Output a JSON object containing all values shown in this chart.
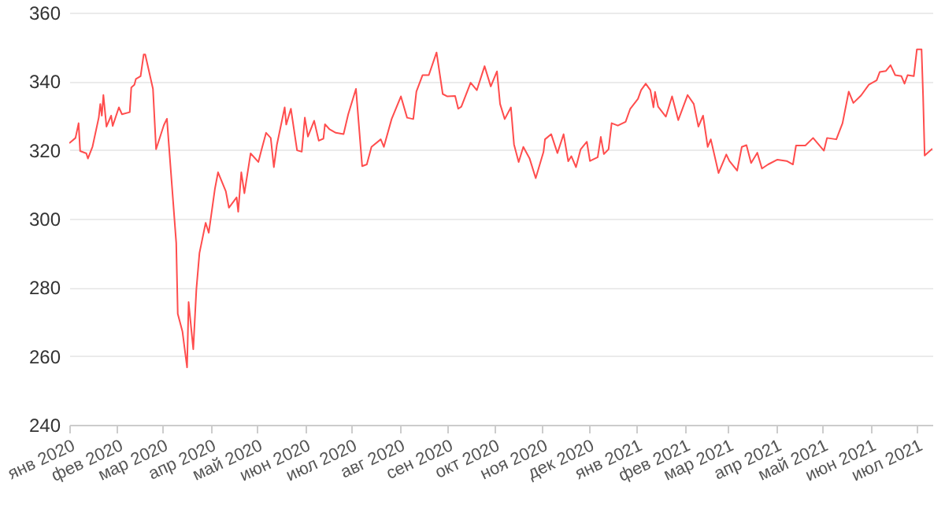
{
  "chart_data": {
    "type": "line",
    "x": [
      "2020-01-01",
      "2020-01-05",
      "2020-01-07",
      "2020-01-08",
      "2020-01-12",
      "2020-01-13",
      "2020-01-16",
      "2020-01-20",
      "2020-01-21",
      "2020-01-22",
      "2020-01-23",
      "2020-01-25",
      "2020-01-28",
      "2020-01-29",
      "2020-02-02",
      "2020-02-04",
      "2020-02-09",
      "2020-02-10",
      "2020-02-12",
      "2020-02-13",
      "2020-02-16",
      "2020-02-18",
      "2020-02-19",
      "2020-02-24",
      "2020-02-26",
      "2020-03-02",
      "2020-03-04",
      "2020-03-10",
      "2020-03-11",
      "2020-03-14",
      "2020-03-17",
      "2020-03-18",
      "2020-03-21",
      "2020-03-23",
      "2020-03-25",
      "2020-03-29",
      "2020-03-31",
      "2020-04-04",
      "2020-04-06",
      "2020-04-11",
      "2020-04-13",
      "2020-04-18",
      "2020-04-19",
      "2020-04-21",
      "2020-04-23",
      "2020-04-27",
      "2020-05-02",
      "2020-05-04",
      "2020-05-07",
      "2020-05-10",
      "2020-05-12",
      "2020-05-14",
      "2020-05-19",
      "2020-05-20",
      "2020-05-23",
      "2020-05-27",
      "2020-05-30",
      "2020-06-01",
      "2020-06-03",
      "2020-06-07",
      "2020-06-10",
      "2020-06-13",
      "2020-06-14",
      "2020-06-17",
      "2020-06-21",
      "2020-06-26",
      "2020-06-29",
      "2020-07-04",
      "2020-07-08",
      "2020-07-11",
      "2020-07-14",
      "2020-07-20",
      "2020-07-22",
      "2020-07-27",
      "2020-08-02",
      "2020-08-06",
      "2020-08-10",
      "2020-08-12",
      "2020-08-16",
      "2020-08-20",
      "2020-08-25",
      "2020-08-29",
      "2020-09-01",
      "2020-09-06",
      "2020-09-08",
      "2020-09-10",
      "2020-09-16",
      "2020-09-20",
      "2020-09-25",
      "2020-09-29",
      "2020-10-03",
      "2020-10-05",
      "2020-10-08",
      "2020-10-12",
      "2020-10-14",
      "2020-10-17",
      "2020-10-20",
      "2020-10-24",
      "2020-10-28",
      "2020-11-02",
      "2020-11-03",
      "2020-11-07",
      "2020-11-11",
      "2020-11-15",
      "2020-11-18",
      "2020-11-20",
      "2020-11-23",
      "2020-11-26",
      "2020-11-30",
      "2020-12-02",
      "2020-12-07",
      "2020-12-09",
      "2020-12-11",
      "2020-12-14",
      "2020-12-16",
      "2020-12-20",
      "2020-12-25",
      "2020-12-28",
      "2021-01-02",
      "2021-01-04",
      "2021-01-07",
      "2021-01-10",
      "2021-01-12",
      "2021-01-13",
      "2021-01-15",
      "2021-01-20",
      "2021-01-24",
      "2021-01-28",
      "2021-02-03",
      "2021-02-07",
      "2021-02-10",
      "2021-02-13",
      "2021-02-16",
      "2021-02-18",
      "2021-02-23",
      "2021-02-28",
      "2021-03-02",
      "2021-03-07",
      "2021-03-10",
      "2021-03-13",
      "2021-03-16",
      "2021-03-20",
      "2021-03-23",
      "2021-03-27",
      "2021-04-02",
      "2021-04-08",
      "2021-04-12",
      "2021-04-14",
      "2021-04-20",
      "2021-04-25",
      "2021-05-02",
      "2021-05-04",
      "2021-05-10",
      "2021-05-14",
      "2021-05-18",
      "2021-05-21",
      "2021-05-26",
      "2021-05-31",
      "2021-06-05",
      "2021-06-07",
      "2021-06-11",
      "2021-06-14",
      "2021-06-17",
      "2021-06-21",
      "2021-06-23",
      "2021-06-25",
      "2021-06-29",
      "2021-07-01",
      "2021-07-04",
      "2021-07-05",
      "2021-07-06",
      "2021-07-11"
    ],
    "series": [
      {
        "color": "#ff4d4d",
        "values": [
          322,
          323.5,
          327.8,
          319.7,
          319,
          317.5,
          321,
          329.4,
          333.4,
          330,
          336,
          326.8,
          330,
          327,
          332.4,
          330.4,
          331,
          338.2,
          339,
          340.7,
          341.5,
          347.8,
          347.8,
          337.8,
          320.2,
          327.2,
          329.1,
          293,
          272.3,
          267.2,
          256.7,
          275.7,
          262,
          279.4,
          290,
          298.8,
          295.9,
          308.8,
          313.5,
          308,
          303.2,
          306.2,
          302,
          313.5,
          307.4,
          319,
          316.5,
          320,
          325,
          323.5,
          315,
          321.6,
          332.4,
          327.4,
          332,
          319.9,
          319.5,
          329.4,
          323.9,
          328.5,
          322.7,
          323.3,
          327.5,
          326,
          325,
          324.6,
          330.4,
          337.8,
          315.3,
          315.8,
          320.9,
          323.1,
          320.9,
          329,
          335.6,
          329.4,
          329,
          337,
          341.8,
          341.8,
          348.4,
          336.3,
          335.6,
          335.7,
          332,
          332.6,
          339.6,
          337.4,
          344.4,
          338.5,
          342.9,
          333.4,
          329,
          332.4,
          321.6,
          316.5,
          320.9,
          317.6,
          311.8,
          319.4,
          323.1,
          324.6,
          319.1,
          324.6,
          316.7,
          318.2,
          315,
          320.2,
          322.4,
          316.8,
          317.9,
          323.8,
          318.8,
          320.2,
          327.8,
          327.1,
          328.2,
          332,
          334.9,
          337.4,
          339.3,
          337.4,
          332.4,
          336.9,
          332.6,
          329.7,
          335.6,
          328.7,
          336,
          333.4,
          326.8,
          330,
          320.9,
          323.1,
          313.3,
          318.7,
          316.8,
          314,
          320.9,
          321.4,
          316.2,
          319.2,
          314.6,
          315.8,
          317.2,
          316.8,
          315.8,
          321.3,
          321.3,
          323.5,
          319.8,
          323.5,
          323.1,
          327.8,
          337,
          333.7,
          335.9,
          339,
          340.3,
          342.7,
          343,
          344.7,
          341.8,
          341.5,
          339.3,
          341.8,
          341.5,
          349.3,
          349.3,
          335.6,
          318.4,
          320.4
        ]
      }
    ],
    "xlim": [
      "2020-01-01",
      "2021-07-11"
    ],
    "xticks": [
      {
        "value": "2020-01-01",
        "label": "янв 2020"
      },
      {
        "value": "2020-02-01",
        "label": "фев 2020"
      },
      {
        "value": "2020-03-01",
        "label": "мар 2020"
      },
      {
        "value": "2020-04-01",
        "label": "апр 2020"
      },
      {
        "value": "2020-05-01",
        "label": "май 2020"
      },
      {
        "value": "2020-06-01",
        "label": "июн 2020"
      },
      {
        "value": "2020-07-01",
        "label": "июл 2020"
      },
      {
        "value": "2020-08-01",
        "label": "авг 2020"
      },
      {
        "value": "2020-09-01",
        "label": "сен 2020"
      },
      {
        "value": "2020-10-01",
        "label": "окт 2020"
      },
      {
        "value": "2020-11-01",
        "label": "ноя 2020"
      },
      {
        "value": "2020-12-01",
        "label": "дек 2020"
      },
      {
        "value": "2021-01-01",
        "label": "янв 2021"
      },
      {
        "value": "2021-02-01",
        "label": "фев 2021"
      },
      {
        "value": "2021-03-01",
        "label": "мар 2021"
      },
      {
        "value": "2021-04-01",
        "label": "апр 2021"
      },
      {
        "value": "2021-05-01",
        "label": "май 2021"
      },
      {
        "value": "2021-06-01",
        "label": "июн 2021"
      },
      {
        "value": "2021-07-01",
        "label": "июл 2021"
      }
    ],
    "ylim": [
      240,
      360
    ],
    "yticks": [
      240,
      260,
      280,
      300,
      320,
      340,
      360
    ],
    "grid": "y"
  }
}
